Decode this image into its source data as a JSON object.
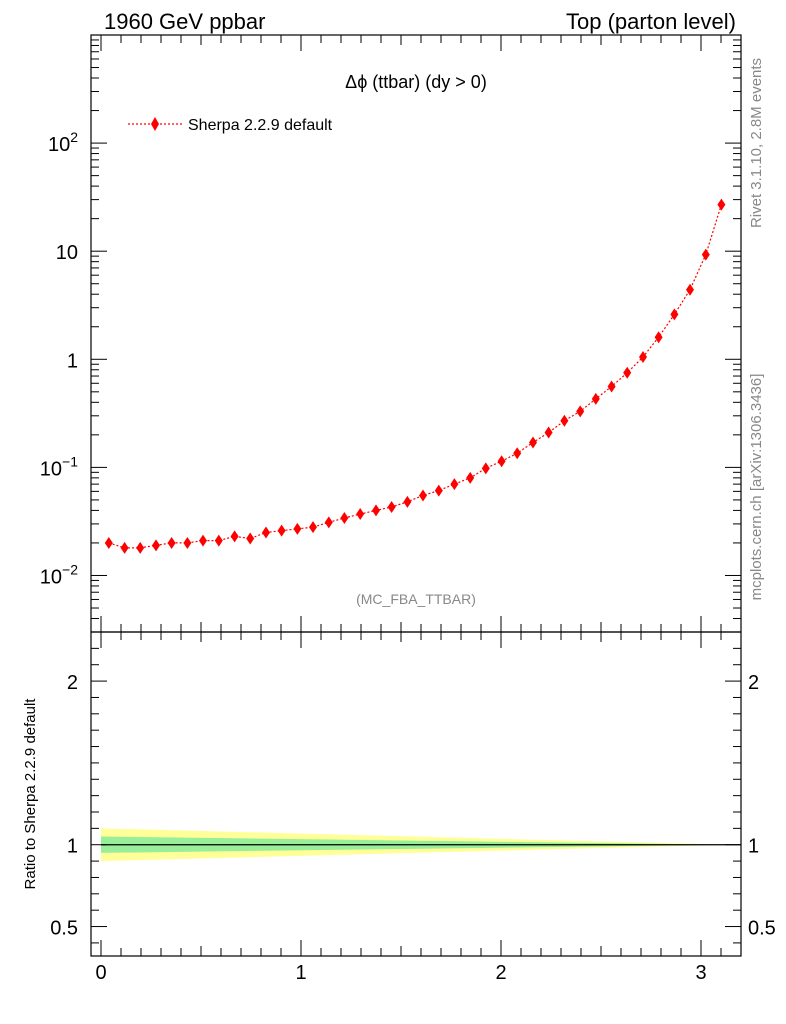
{
  "header": {
    "left_title": "1960 GeV ppbar",
    "right_title": "Top (parton level)"
  },
  "side_text": {
    "rivet": "Rivet 3.1.10,  2.8M events",
    "mcplots": "mcplots.cern.ch [arXiv:1306.3436]"
  },
  "colors": {
    "series": "#ff0000",
    "band_inner": "#99ee99",
    "band_outer": "#ffff99"
  },
  "chart_data": [
    {
      "type": "line",
      "title": "Δϕ (ttbar) (dy > 0)",
      "annotation": "(MC_FBA_TTBAR)",
      "xlim": [
        -0.05,
        3.2
      ],
      "ylim": [
        0.003,
        1000
      ],
      "yscale": "log",
      "legend_position": "top-left",
      "y_ticks": [
        {
          "value": 0.01,
          "label": "10^-2"
        },
        {
          "value": 0.1,
          "label": "10^-1"
        },
        {
          "value": 1,
          "label": "1"
        },
        {
          "value": 10,
          "label": "10"
        },
        {
          "value": 100,
          "label": "10^2"
        }
      ],
      "series": [
        {
          "name": "Sherpa 2.2.9 default",
          "x": [
            0.039,
            0.118,
            0.196,
            0.275,
            0.353,
            0.432,
            0.51,
            0.589,
            0.668,
            0.746,
            0.825,
            0.903,
            0.982,
            1.06,
            1.139,
            1.217,
            1.296,
            1.375,
            1.453,
            1.532,
            1.61,
            1.689,
            1.767,
            1.846,
            1.924,
            2.003,
            2.081,
            2.16,
            2.238,
            2.317,
            2.396,
            2.474,
            2.553,
            2.631,
            2.71,
            2.788,
            2.867,
            2.945,
            3.024,
            3.102
          ],
          "y": [
            0.02,
            0.018,
            0.018,
            0.019,
            0.02,
            0.02,
            0.021,
            0.021,
            0.023,
            0.022,
            0.025,
            0.026,
            0.027,
            0.028,
            0.031,
            0.034,
            0.037,
            0.04,
            0.043,
            0.048,
            0.055,
            0.061,
            0.07,
            0.08,
            0.098,
            0.114,
            0.135,
            0.17,
            0.21,
            0.27,
            0.33,
            0.43,
            0.56,
            0.75,
            1.05,
            1.6,
            2.6,
            4.4,
            9.3,
            27.0
          ]
        }
      ]
    },
    {
      "type": "area",
      "ylabel": "Ratio to Sherpa 2.2.9 default",
      "xlim": [
        -0.05,
        3.2
      ],
      "ylim": [
        0.32,
        2.3
      ],
      "x_ticks": [
        0,
        1,
        2,
        3
      ],
      "y_ticks": [
        0.5,
        1,
        2
      ],
      "reference_line": 1,
      "bands": {
        "x": [
          0.0,
          3.14
        ],
        "inner_halfwidth": [
          0.05,
          0.0
        ],
        "outer_halfwidth": [
          0.1,
          0.0
        ]
      }
    }
  ]
}
